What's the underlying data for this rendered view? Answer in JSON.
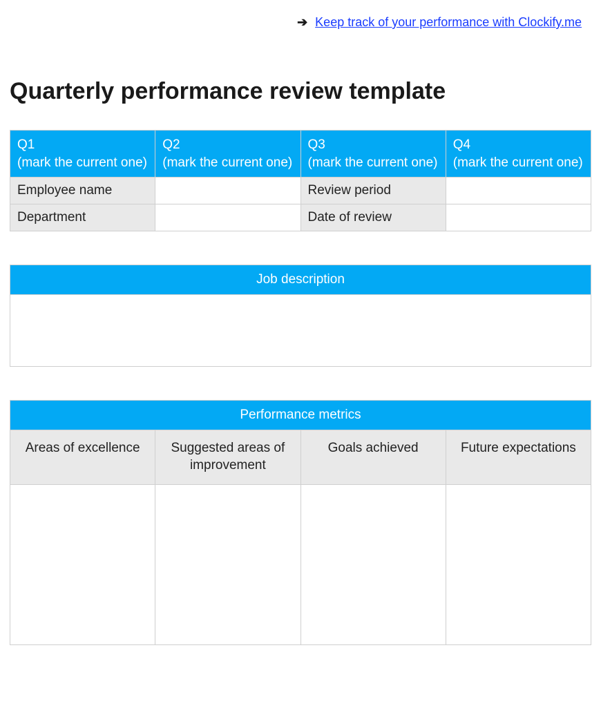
{
  "colors": {
    "header_bg": "#03a9f4",
    "header_text": "#ffffff",
    "label_bg": "#e9e9e9",
    "border": "#cfcfcf",
    "link": "#1a3cff",
    "body_text": "#1a1a1a"
  },
  "top_link": {
    "arrow_glyph": "➔",
    "text": "Keep track of your performance with Clockify.me"
  },
  "title": "Quarterly performance review template",
  "quarter_table": {
    "headers": [
      {
        "code": "Q1",
        "note": "(mark the current one)"
      },
      {
        "code": "Q2",
        "note": "(mark the current one)"
      },
      {
        "code": "Q3",
        "note": "(mark the current one)"
      },
      {
        "code": "Q4",
        "note": "(mark the current one)"
      }
    ],
    "rows": [
      {
        "label_left": "Employee name",
        "value_left": "",
        "label_right": "Review period",
        "value_right": ""
      },
      {
        "label_left": "Department",
        "value_left": "",
        "label_right": "Date of review",
        "value_right": ""
      }
    ]
  },
  "job_description": {
    "title": "Job description",
    "body": ""
  },
  "performance_metrics": {
    "title": "Performance metrics",
    "columns": [
      "Areas of excellence",
      "Suggested areas of improvement",
      "Goals achieved",
      "Future expectations"
    ],
    "row": [
      "",
      "",
      "",
      ""
    ]
  }
}
